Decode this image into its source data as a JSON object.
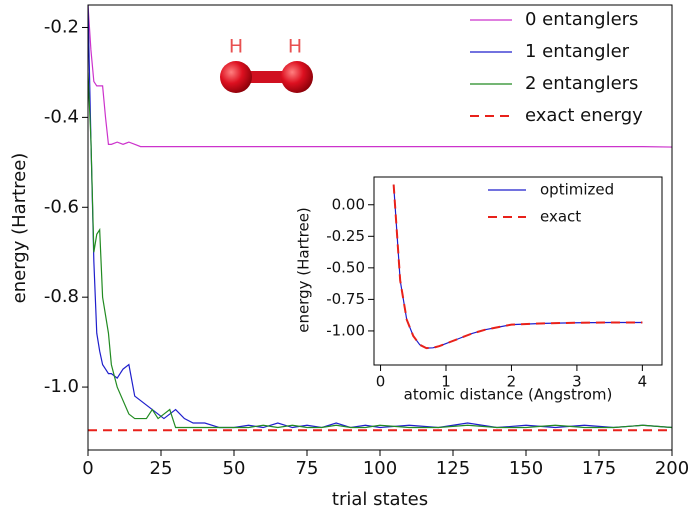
{
  "chart_data": [
    {
      "type": "line",
      "xlabel": "trial states",
      "ylabel": "energy (Hartree)",
      "x": [
        0,
        1,
        2,
        3,
        4,
        5,
        6,
        7,
        8,
        10,
        12,
        14,
        16,
        18,
        20,
        22,
        24,
        26,
        28,
        30,
        33,
        36,
        40,
        45,
        50,
        55,
        60,
        65,
        70,
        75,
        80,
        85,
        90,
        95,
        100,
        110,
        120,
        130,
        140,
        150,
        160,
        170,
        180,
        190,
        200
      ],
      "xlim": [
        0,
        200
      ],
      "xticks": [
        0,
        25,
        50,
        75,
        100,
        125,
        150,
        175,
        200
      ],
      "ylim": [
        -1.14,
        -0.15
      ],
      "yticks": [
        {
          "value": -1.0,
          "label": "-1.0"
        },
        -0.8,
        -0.6,
        -0.4,
        -0.2
      ],
      "legend": "upper right",
      "series": [
        {
          "name": "0 entanglers",
          "color": "#cc33cc",
          "linestyle": "solid",
          "values": [
            -0.15,
            -0.25,
            -0.32,
            -0.33,
            -0.33,
            -0.33,
            -0.4,
            -0.46,
            -0.46,
            -0.455,
            -0.46,
            -0.455,
            -0.46,
            -0.465,
            -0.465,
            -0.465,
            -0.465,
            -0.465,
            -0.465,
            -0.465,
            -0.465,
            -0.465,
            -0.465,
            -0.465,
            -0.465,
            -0.465,
            -0.465,
            -0.465,
            -0.465,
            -0.465,
            -0.465,
            -0.465,
            -0.465,
            -0.465,
            -0.465,
            -0.465,
            -0.465,
            -0.465,
            -0.465,
            -0.465,
            -0.465,
            -0.465,
            -0.465,
            -0.465,
            -0.466
          ]
        },
        {
          "name": "1 entangler",
          "color": "#1f1fcc",
          "linestyle": "solid",
          "values": [
            -0.15,
            -0.45,
            -0.72,
            -0.88,
            -0.92,
            -0.95,
            -0.96,
            -0.97,
            -0.97,
            -0.98,
            -0.96,
            -0.95,
            -1.02,
            -1.03,
            -1.04,
            -1.05,
            -1.06,
            -1.07,
            -1.06,
            -1.05,
            -1.07,
            -1.08,
            -1.08,
            -1.09,
            -1.09,
            -1.085,
            -1.09,
            -1.08,
            -1.09,
            -1.085,
            -1.09,
            -1.08,
            -1.09,
            -1.085,
            -1.09,
            -1.085,
            -1.09,
            -1.08,
            -1.09,
            -1.085,
            -1.09,
            -1.085,
            -1.09,
            -1.085,
            -1.09
          ]
        },
        {
          "name": "2 entanglers",
          "color": "#228b22",
          "linestyle": "solid",
          "values": [
            -0.3,
            -0.45,
            -0.7,
            -0.66,
            -0.65,
            -0.8,
            -0.84,
            -0.88,
            -0.95,
            -1.0,
            -1.03,
            -1.06,
            -1.07,
            -1.07,
            -1.07,
            -1.05,
            -1.07,
            -1.06,
            -1.05,
            -1.09,
            -1.09,
            -1.09,
            -1.09,
            -1.09,
            -1.09,
            -1.09,
            -1.085,
            -1.09,
            -1.085,
            -1.09,
            -1.09,
            -1.085,
            -1.09,
            -1.09,
            -1.085,
            -1.09,
            -1.09,
            -1.085,
            -1.09,
            -1.09,
            -1.085,
            -1.09,
            -1.09,
            -1.085,
            -1.09
          ]
        },
        {
          "name": "exact energy",
          "color": "#e8211a",
          "linestyle": "dashed",
          "x": [
            0,
            200
          ],
          "values": [
            -1.096,
            -1.096
          ]
        }
      ],
      "annotations": [
        "H",
        "H"
      ]
    },
    {
      "type": "line",
      "xlabel": "atomic distance (Angstrom)",
      "ylabel": "energy (Hartree)",
      "x": [
        0.2,
        0.3,
        0.4,
        0.5,
        0.6,
        0.7,
        0.8,
        0.9,
        1.0,
        1.2,
        1.4,
        1.6,
        1.8,
        2.0,
        2.5,
        3.0,
        3.5,
        4.0
      ],
      "xlim": [
        -0.1,
        4.3
      ],
      "xticks": [
        0,
        1,
        2,
        3,
        4
      ],
      "ylim": [
        -1.27,
        0.22
      ],
      "yticks": [
        {
          "value": -1.0,
          "label": "-1.00"
        },
        {
          "value": -0.75,
          "label": "-0.75"
        },
        {
          "value": -0.5,
          "label": "-0.50"
        },
        {
          "value": -0.25,
          "label": "-0.25"
        },
        {
          "value": 0,
          "label": "0.00"
        }
      ],
      "legend": "upper right",
      "series": [
        {
          "name": "optimized",
          "color": "#1f1fcc",
          "linestyle": "solid",
          "values": [
            0.16,
            -0.6,
            -0.91,
            -1.04,
            -1.11,
            -1.136,
            -1.134,
            -1.12,
            -1.1,
            -1.06,
            -1.02,
            -0.99,
            -0.97,
            -0.95,
            -0.94,
            -0.935,
            -0.933,
            -0.933
          ]
        },
        {
          "name": "exact",
          "color": "#e8211a",
          "linestyle": "dashed",
          "values": [
            0.16,
            -0.6,
            -0.91,
            -1.04,
            -1.11,
            -1.136,
            -1.134,
            -1.12,
            -1.1,
            -1.06,
            -1.02,
            -0.99,
            -0.97,
            -0.95,
            -0.94,
            -0.935,
            -0.933,
            -0.933
          ]
        }
      ]
    }
  ]
}
